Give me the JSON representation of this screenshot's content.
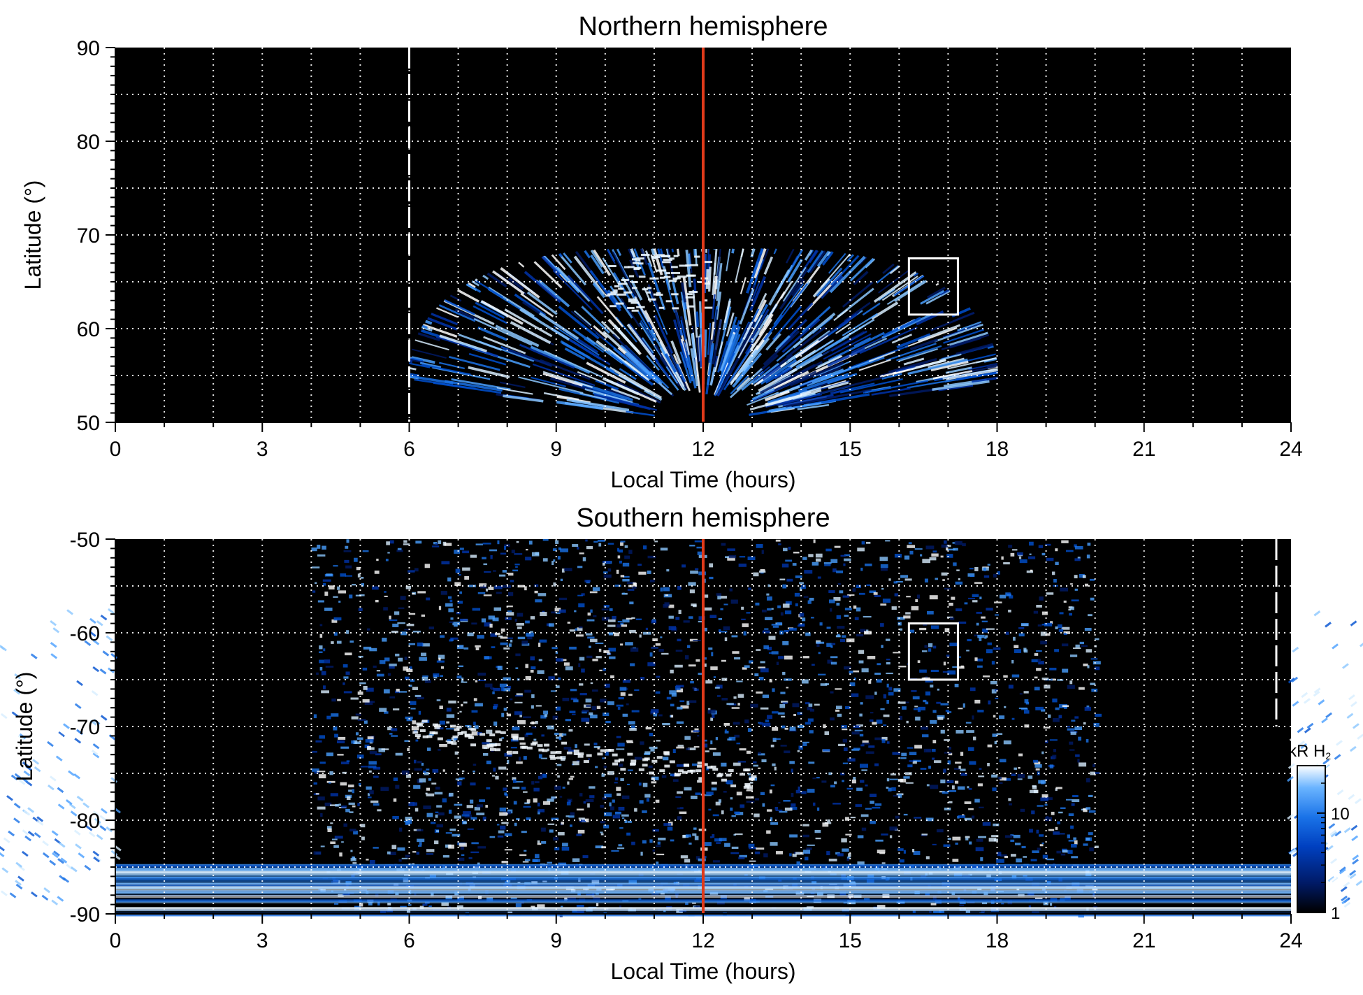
{
  "chart_data": [
    {
      "type": "heatmap",
      "panel": "north",
      "title": "Northern hemisphere",
      "xlabel": "Local Time (hours)",
      "ylabel": "Latitude (°)",
      "xlim": [
        0,
        24
      ],
      "ylim": [
        50,
        90
      ],
      "xticks": [
        "0",
        "3",
        "6",
        "9",
        "12",
        "15",
        "18",
        "21",
        "24"
      ],
      "yticks": [
        "50",
        "60",
        "70",
        "80",
        "90"
      ],
      "grid": true,
      "noon_line_lt": 12,
      "dashed_line_lt": 6,
      "box": {
        "lt": [
          16.2,
          17.2
        ],
        "lat": [
          61.5,
          67.5
        ]
      },
      "colors": {
        "background": "#000000",
        "noon_line": "#e03a1a",
        "box": "#ffffff",
        "grid": "#ffffff"
      }
    },
    {
      "type": "heatmap",
      "panel": "south",
      "title": "Southern hemisphere",
      "xlabel": "Local Time (hours)",
      "ylabel": "Latitude (°)",
      "xlim": [
        0,
        24
      ],
      "ylim": [
        -90,
        -50
      ],
      "xticks": [
        "0",
        "3",
        "6",
        "9",
        "12",
        "15",
        "18",
        "21",
        "24"
      ],
      "yticks": [
        "-90",
        "-80",
        "-70",
        "-60",
        "-50"
      ],
      "grid": true,
      "noon_line_lt": 12,
      "dashed_line_lt": 23.7,
      "box": {
        "lt": [
          16.2,
          17.2
        ],
        "lat": [
          -65,
          -59
        ]
      },
      "colors": {
        "background": "#000000",
        "noon_line": "#e03a1a",
        "box": "#ffffff",
        "grid": "#ffffff"
      }
    }
  ],
  "colorbar": {
    "label": "kR H",
    "label_sub": "2",
    "ticks": [
      "1",
      "10"
    ],
    "scale": "log",
    "range": [
      1,
      30
    ],
    "colors": [
      "#000000",
      "#001a66",
      "#0040c0",
      "#1a73e8",
      "#6ab4ff",
      "#ffffff"
    ]
  }
}
